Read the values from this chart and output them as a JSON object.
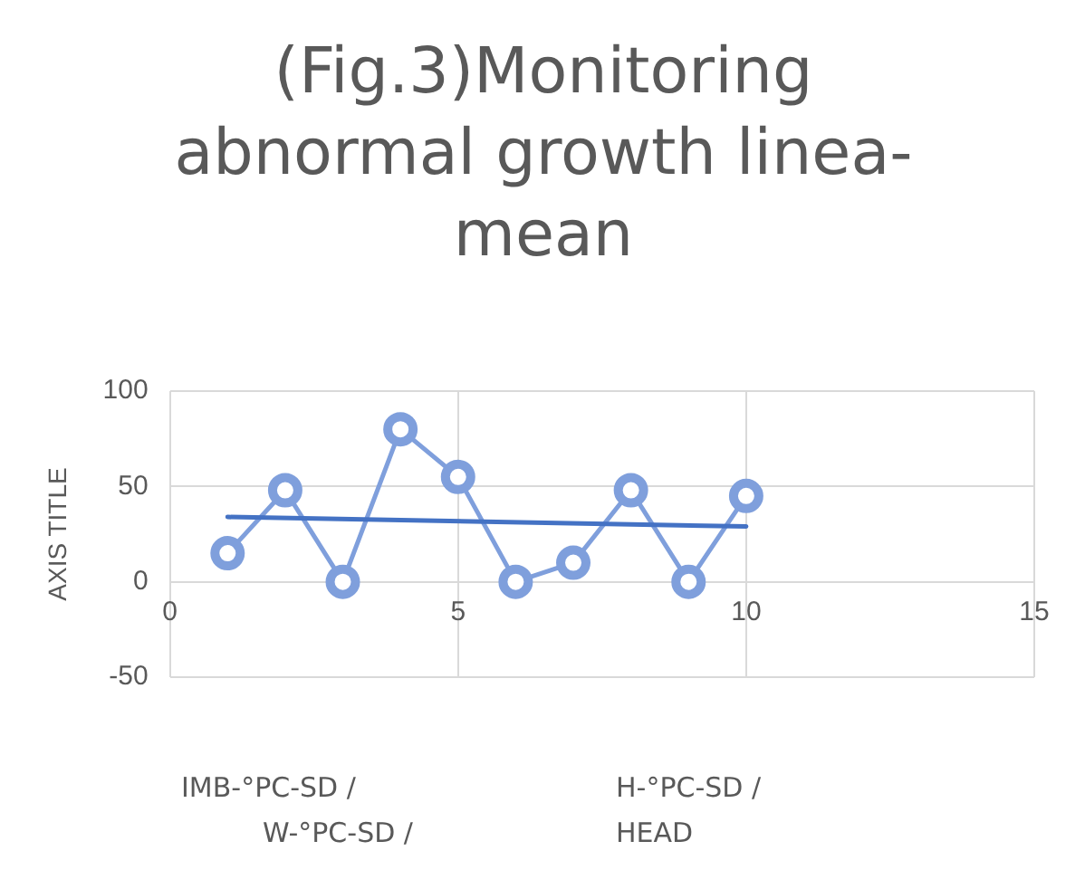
{
  "chart_data": {
    "type": "line",
    "title": "(Fig.3)Monitoring\nabnormal growth linea-\nmean",
    "ylabel": "AXIS TITLE",
    "xlim": [
      0,
      15
    ],
    "xticks": [
      0,
      5,
      10,
      15
    ],
    "ylim": [
      -50,
      100
    ],
    "yticks": [
      -50,
      0,
      50,
      100
    ],
    "grid": true,
    "legend": false,
    "marker": "circle",
    "line_style": "solid",
    "series": [
      {
        "color": "#7f9fdc",
        "x": [
          1,
          2,
          3,
          4,
          5,
          6,
          7,
          8,
          9,
          10
        ],
        "values": [
          15,
          48,
          0,
          80,
          55,
          0,
          10,
          48,
          0,
          45
        ]
      },
      {
        "type": "line",
        "color": "#4472c4",
        "marker": "none",
        "x": [
          1,
          10
        ],
        "values": [
          34,
          29
        ]
      }
    ],
    "annotations": [
      "IMB-°PC-SD /\nW-°PC-SD /",
      "H-°PC-SD /\nHEAD"
    ]
  }
}
